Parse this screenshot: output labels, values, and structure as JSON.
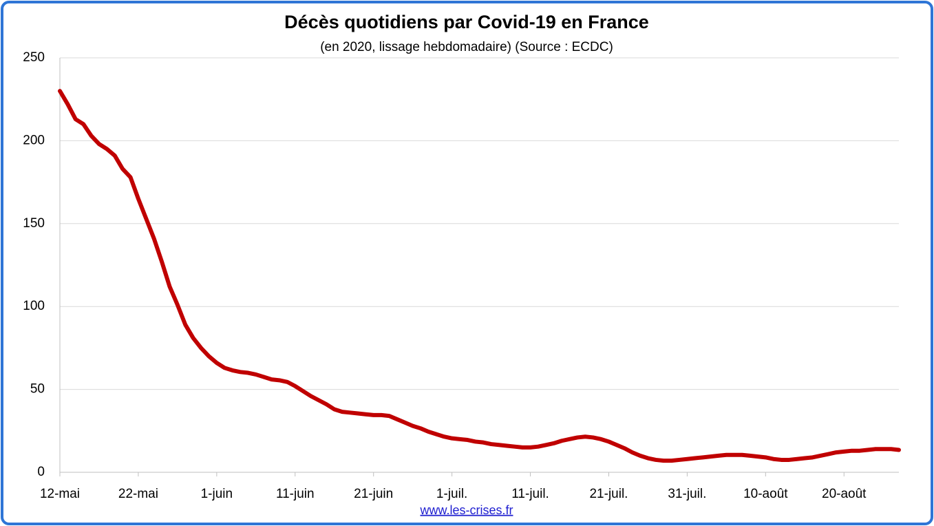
{
  "chart_data": {
    "type": "line",
    "title": "Décès quotidiens par Covid-19 en France",
    "subtitle": "(en 2020, lissage hebdomadaire) (Source : ECDC)",
    "source": "www.les-crises.fr",
    "categories": [
      "12-mai",
      null,
      null,
      null,
      null,
      null,
      null,
      null,
      null,
      null,
      "22-mai",
      null,
      null,
      null,
      null,
      null,
      null,
      null,
      null,
      null,
      "1-juin",
      null,
      null,
      null,
      null,
      null,
      null,
      null,
      null,
      null,
      "11-juin",
      null,
      null,
      null,
      null,
      null,
      null,
      null,
      null,
      null,
      "21-juin",
      null,
      null,
      null,
      null,
      null,
      null,
      null,
      null,
      null,
      "1-juil.",
      null,
      null,
      null,
      null,
      null,
      null,
      null,
      null,
      null,
      "11-juil.",
      null,
      null,
      null,
      null,
      null,
      null,
      null,
      null,
      null,
      "21-juil.",
      null,
      null,
      null,
      null,
      null,
      null,
      null,
      null,
      null,
      "31-juil.",
      null,
      null,
      null,
      null,
      null,
      null,
      null,
      null,
      null,
      "10-août",
      null,
      null,
      null,
      null,
      null,
      null,
      null,
      null,
      null,
      "20-août",
      null,
      null,
      null,
      null,
      null,
      null,
      null
    ],
    "series": [
      {
        "name": "Décès quotidiens",
        "color": "#c00000",
        "values": [
          230,
          222,
          213,
          210,
          203,
          198,
          195,
          191,
          183,
          178,
          165,
          153,
          141,
          127,
          112,
          101,
          89,
          81,
          75,
          70,
          66,
          63,
          61.5,
          60.5,
          60,
          59,
          57.5,
          56,
          55.5,
          54.5,
          52,
          49,
          46,
          43.5,
          41,
          38,
          36.5,
          36,
          35.5,
          35,
          34.5,
          34.5,
          34,
          32,
          30,
          28,
          26.5,
          24.5,
          23,
          21.5,
          20.5,
          20,
          19.5,
          18.5,
          18,
          17,
          16.5,
          16,
          15.5,
          15,
          15,
          15.5,
          16.5,
          17.5,
          19,
          20,
          21,
          21.5,
          21,
          20,
          18.5,
          16.5,
          14.5,
          12,
          10,
          8.5,
          7.5,
          7,
          7,
          7.5,
          8,
          8.5,
          9,
          9.5,
          10,
          10.5,
          10.5,
          10.5,
          10,
          9.5,
          9,
          8,
          7.5,
          7.5,
          8,
          8.5,
          9,
          10,
          11,
          12,
          12.5,
          13,
          13,
          13.5,
          14,
          14,
          14,
          13.5
        ]
      }
    ],
    "ylim": [
      0,
      250
    ],
    "yticks": [
      0,
      50,
      100,
      150,
      200,
      250
    ],
    "grid": true
  }
}
